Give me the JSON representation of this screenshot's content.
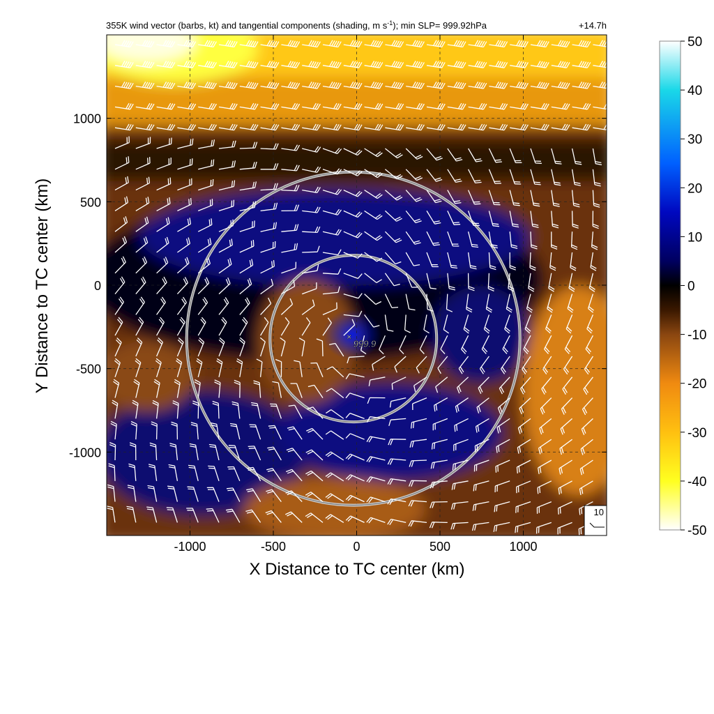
{
  "chart_data": {
    "type": "heatmap",
    "title": {
      "prefix": "355K wind vector (barbs, kt) and tangential components (shading, m s",
      "superscript": "-1",
      "suffix": "); min SLP= 999.92hPa"
    },
    "lead_time": "+14.7h",
    "xlabel": "X Distance to TC center (km)",
    "ylabel": "Y Distance to TC center (km)",
    "xlim": [
      -1500,
      1500
    ],
    "ylim": [
      -1500,
      1500
    ],
    "x_ticks": [
      -1000,
      -500,
      0,
      500,
      1000
    ],
    "y_ticks": [
      1000,
      500,
      0,
      -500,
      -1000
    ],
    "grid": true,
    "colorbar": {
      "min": -50,
      "max": 50,
      "ticks": [
        50,
        40,
        30,
        20,
        10,
        0,
        -10,
        -20,
        -30,
        -40,
        -50
      ],
      "colors": {
        "p50": "#ffffff",
        "p40": "#1ad8e8",
        "p25": "#0060ff",
        "p15": "#0008c0",
        "p5": "#000060",
        "zero": "#000000",
        "m5": "#3a1800",
        "m10": "#8a4610",
        "m20": "#f08a10",
        "m30": "#ffc010",
        "m40": "#ffff20",
        "m50": "#ffffff"
      }
    },
    "center_marker": {
      "x": -20,
      "y": -320,
      "label": "999.9"
    },
    "range_rings_km": [
      500,
      1000
    ],
    "reference_barb_label": "10",
    "field_units": "m s-1",
    "barb_units": "kt"
  }
}
